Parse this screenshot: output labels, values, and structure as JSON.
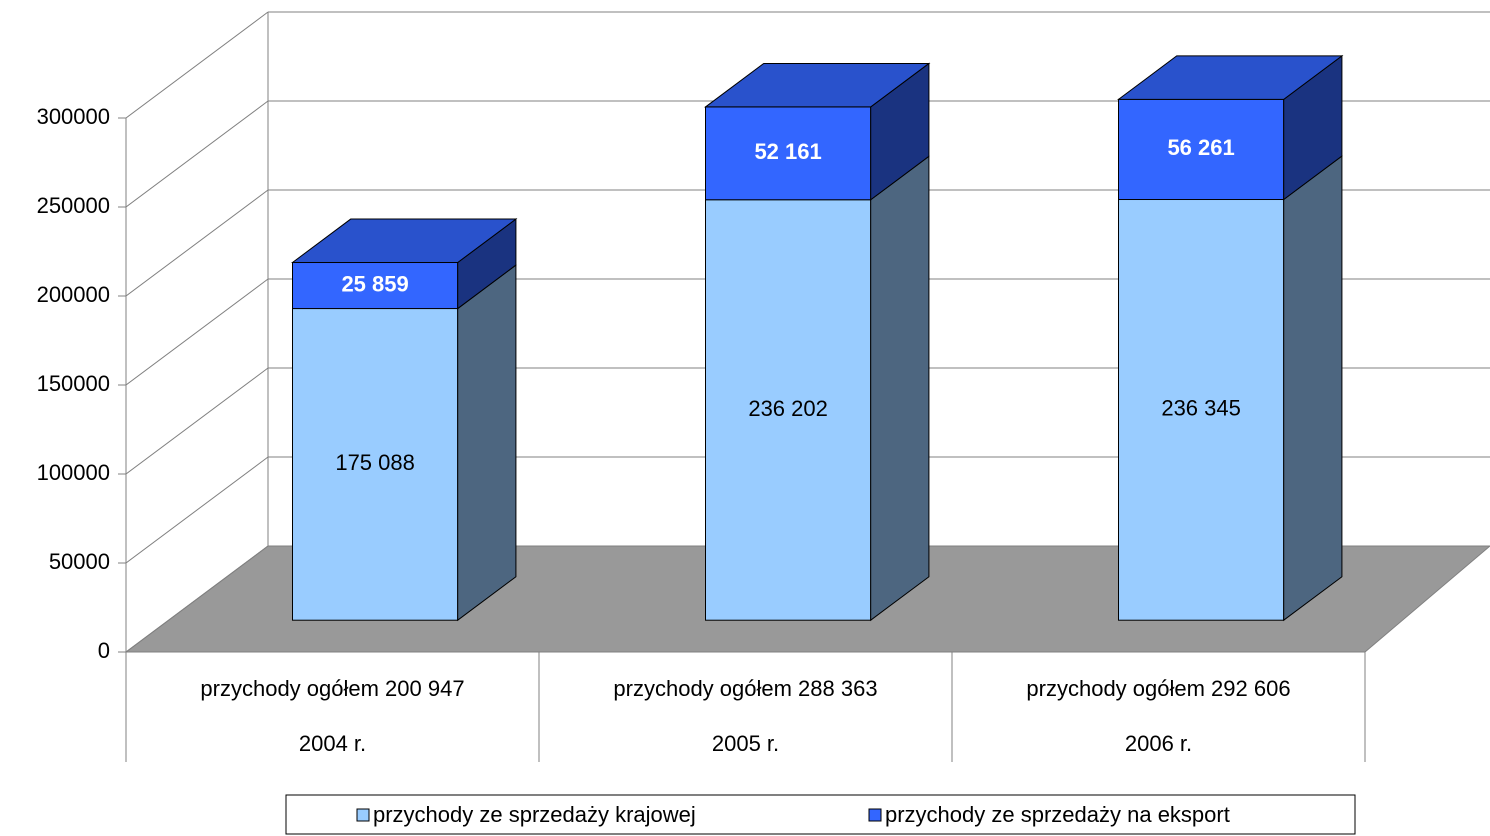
{
  "chart_data": {
    "type": "bar3d_stacked",
    "categories": [
      "2004 r.",
      "2005 r.",
      "2006 r."
    ],
    "category_sublabels": [
      "przychody ogółem 200 947",
      "przychody ogółem 288 363",
      "przychody ogółem 292 606"
    ],
    "series": [
      {
        "name": "przychody ze sprzedaży krajowej",
        "color": "#99ccff",
        "values": [
          175088,
          236202,
          236345
        ],
        "value_labels": [
          "175 088",
          "236 202",
          "236 345"
        ]
      },
      {
        "name": "przychody ze sprzedaży na eksport",
        "color": "#3366ff",
        "values": [
          25859,
          52161,
          56261
        ],
        "value_labels": [
          "25 859",
          "52 161",
          "56 261"
        ]
      }
    ],
    "ylim": [
      0,
      300000
    ],
    "yticks": [
      0,
      50000,
      100000,
      150000,
      200000,
      250000,
      300000
    ],
    "grid": true,
    "legend": "bottom"
  }
}
